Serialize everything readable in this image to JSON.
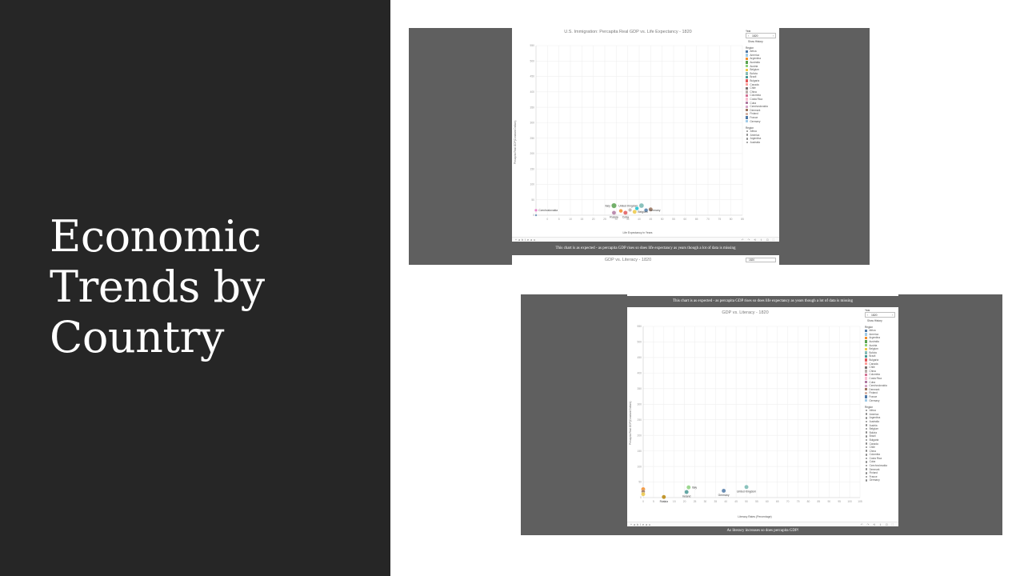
{
  "slide": {
    "title": "Economic Trends by Country"
  },
  "viz1": {
    "title": "U.S. Immigration: Percapita Real GDP vs. Life Expectancy - 1820",
    "y_title": "Percapita Real GDP(Constant Dollars)",
    "x_title": "Life Expectancy in Years",
    "y_ticks": [
      "550",
      "500",
      "450",
      "400",
      "350",
      "300",
      "250",
      "200",
      "150",
      "100",
      "50",
      "0"
    ],
    "x_ticks": [
      "0",
      "5",
      "10",
      "15",
      "20",
      "25",
      "30",
      "35",
      "40",
      "45",
      "50",
      "55",
      "60",
      "65",
      "70",
      "75",
      "80",
      "85"
    ],
    "points": [
      {
        "label": "Czechoslovakia",
        "color": "#e377c2",
        "labelpos": "right"
      },
      {
        "label": "",
        "color": "#4e79a7",
        "labelpos": "right"
      },
      {
        "label": "Italy",
        "color": "#59a14f",
        "labelpos": "left"
      },
      {
        "label": "United Kingdom",
        "color": "#76b7b2",
        "labelpos": "left"
      },
      {
        "label": "",
        "color": "#17becf",
        "labelpos": "right"
      },
      {
        "label": "",
        "color": "#9c755f",
        "labelpos": "right"
      },
      {
        "label": "Germany",
        "color": "#4e79a7",
        "labelpos": "right"
      },
      {
        "label": "Belgium",
        "color": "#edc948",
        "labelpos": "right"
      },
      {
        "label": "Russia",
        "color": "#b07aa1",
        "labelpos": "below"
      },
      {
        "label": "Cuba",
        "color": "#e15759",
        "labelpos": "below"
      },
      {
        "label": "",
        "color": "#f28e2b",
        "labelpos": "right"
      },
      {
        "label": "",
        "color": "#bab0ac",
        "labelpos": "right"
      }
    ],
    "caption": "This chart is as expected - as percapita GDP rises so does life expectancy as years though a lot of data is missing"
  },
  "viz2": {
    "title": "GDP vs. Literacy - 1820",
    "y_title": "Percapita Real GDP(Constant Dollars)",
    "x_title": "Literacy Rates (Percentage)",
    "y_ticks": [
      "550",
      "500",
      "450",
      "400",
      "350",
      "300",
      "250",
      "200",
      "150",
      "100",
      "50",
      "0"
    ],
    "x_ticks": [
      "0",
      "5",
      "10",
      "15",
      "20",
      "25",
      "30",
      "35",
      "40",
      "45",
      "50",
      "55",
      "60",
      "65",
      "70",
      "75",
      "80",
      "85",
      "90",
      "95",
      "100",
      "105"
    ],
    "points": [
      {
        "label": "",
        "color": "#f28e2b",
        "labelpos": "right"
      },
      {
        "label": "",
        "color": "#9c755f",
        "labelpos": "right"
      },
      {
        "label": "",
        "color": "#edc948",
        "labelpos": "right"
      },
      {
        "label": "Russia",
        "color": "#b8860b",
        "labelpos": "below"
      },
      {
        "label": "Italy",
        "color": "#8cd17d",
        "labelpos": "right"
      },
      {
        "label": "Ireland",
        "color": "#499894",
        "labelpos": "below"
      },
      {
        "label": "Germany",
        "color": "#4e79a7",
        "labelpos": "below"
      },
      {
        "label": "United Kingdom",
        "color": "#76b7b2",
        "labelpos": "below"
      }
    ],
    "caption_top": "This chart is as expected - as percapita GDP rises so does life expectancy as years though a lot of data is missing",
    "caption_bottom": "As literacy increases so does percapita GDP!"
  },
  "peek": {
    "title": "GDP vs. Literacy - 1820"
  },
  "panel": {
    "year_label": "Year",
    "year_value": "1820",
    "show_history": "Show History",
    "region_title": "Region",
    "region_title_2": "Region",
    "regions": [
      {
        "name": "Africa",
        "color": "#4e79a7"
      },
      {
        "name": "America",
        "color": "#a0cbe8"
      },
      {
        "name": "Argentina",
        "color": "#f28e2b"
      },
      {
        "name": "Australia",
        "color": "#59a14f"
      },
      {
        "name": "Austria",
        "color": "#8cd17d"
      },
      {
        "name": "Belgium",
        "color": "#edc948"
      },
      {
        "name": "Bolivia",
        "color": "#86bcb6"
      },
      {
        "name": "Brazil",
        "color": "#499894"
      },
      {
        "name": "Bulgaria",
        "color": "#e15759"
      },
      {
        "name": "Canada",
        "color": "#ff9d9a"
      },
      {
        "name": "Chile",
        "color": "#79706e"
      },
      {
        "name": "China",
        "color": "#bab0ac"
      },
      {
        "name": "Colombia",
        "color": "#d37295"
      },
      {
        "name": "Costa Rica",
        "color": "#fabfd2"
      },
      {
        "name": "Cuba",
        "color": "#b07aa1"
      },
      {
        "name": "Czechoslovakia",
        "color": "#d4a6c8"
      },
      {
        "name": "Denmark",
        "color": "#9d7660"
      },
      {
        "name": "Finland",
        "color": "#d7b5a6"
      },
      {
        "name": "France",
        "color": "#4e79a7"
      },
      {
        "name": "Germany",
        "color": "#a0cbe8"
      }
    ],
    "regions_2": [
      "Africa",
      "America",
      "Argentina",
      "Australia",
      "Austria",
      "Belgium",
      "Bolivia",
      "Brazil",
      "Bulgaria",
      "Canada",
      "Chile",
      "China",
      "Colombia",
      "Costa Rica",
      "Cuba",
      "Czechoslovakia",
      "Denmark",
      "Finland",
      "France",
      "Germany"
    ],
    "tableau_logo": "+ a b l e a u",
    "toolbar_icons": "↶ ↷ ⟲ ⇪ ⊡ ⛶"
  },
  "chart_data": [
    {
      "type": "scatter",
      "title": "U.S. Immigration: Percapita Real GDP vs. Life Expectancy - 1820",
      "xlabel": "Life Expectancy in Years",
      "ylabel": "Percapita Real GDP(Constant Dollars)",
      "xlim": [
        -5,
        85
      ],
      "ylim": [
        0,
        550
      ],
      "grid": true,
      "legend": "right",
      "points": [
        {
          "name": "Czechoslovakia",
          "x": -5,
          "y": 16,
          "size": 1.8
        },
        {
          "name": "",
          "x": -5,
          "y": 0,
          "size": 1.3
        },
        {
          "name": "Italy",
          "x": 29,
          "y": 31,
          "size": 3.2
        },
        {
          "name": "United Kingdom",
          "x": 41,
          "y": 31,
          "size": 3.0
        },
        {
          "name": "",
          "x": 39,
          "y": 22,
          "size": 2.4
        },
        {
          "name": "",
          "x": 45,
          "y": 19,
          "size": 2.6
        },
        {
          "name": "Germany",
          "x": 43,
          "y": 16,
          "size": 2.4
        },
        {
          "name": "Belgium",
          "x": 38,
          "y": 11,
          "size": 2.6
        },
        {
          "name": "Russia",
          "x": 29,
          "y": 8,
          "size": 2.6
        },
        {
          "name": "Cuba",
          "x": 34,
          "y": 8,
          "size": 2.6
        },
        {
          "name": "",
          "x": 32,
          "y": 14,
          "size": 2.4
        },
        {
          "name": "",
          "x": 36,
          "y": 17,
          "size": 2.2
        }
      ]
    },
    {
      "type": "scatter",
      "title": "GDP vs. Literacy - 1820",
      "xlabel": "Literacy Rates (Percentage)",
      "ylabel": "Percapita Real GDP(Constant Dollars)",
      "xlim": [
        0,
        105
      ],
      "ylim": [
        0,
        550
      ],
      "grid": true,
      "legend": "right",
      "points": [
        {
          "name": "",
          "x": 0,
          "y": 27,
          "size": 2.6
        },
        {
          "name": "",
          "x": 0,
          "y": 19,
          "size": 2.4
        },
        {
          "name": "",
          "x": 0,
          "y": 11,
          "size": 2.6
        },
        {
          "name": "Russia",
          "x": 10,
          "y": 2,
          "size": 2.6
        },
        {
          "name": "Italy",
          "x": 22,
          "y": 33,
          "size": 2.6
        },
        {
          "name": "Ireland",
          "x": 21,
          "y": 18,
          "size": 2.6
        },
        {
          "name": "Germany",
          "x": 39,
          "y": 22,
          "size": 2.6
        },
        {
          "name": "United Kingdom",
          "x": 50,
          "y": 34,
          "size": 2.6
        }
      ]
    }
  ]
}
